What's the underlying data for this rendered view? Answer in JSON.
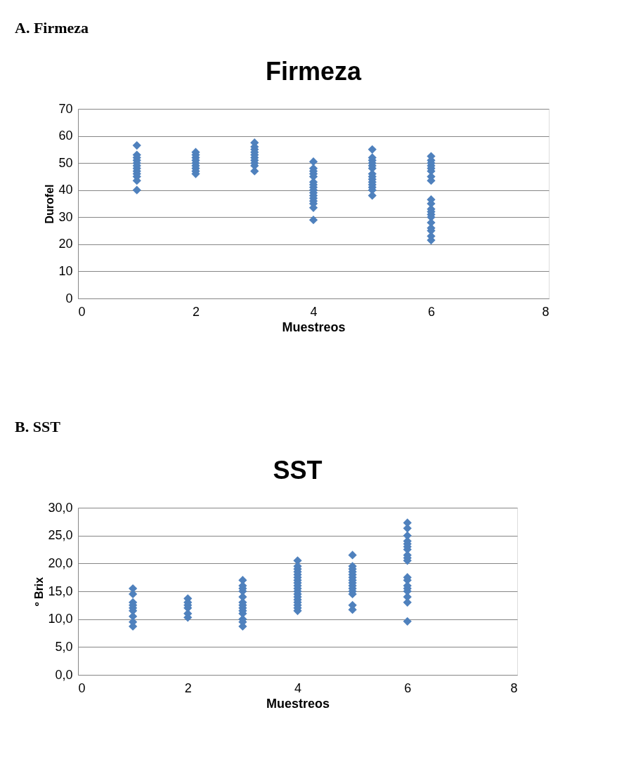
{
  "chart_data": [
    {
      "type": "scatter",
      "title": "Firmeza",
      "xlabel": "Muestreos",
      "ylabel": "Durofel",
      "annotations": [
        "A. Firmeza"
      ],
      "marker": "diamond",
      "grid": "y",
      "xlim": [
        0,
        8
      ],
      "xticks": [
        0,
        2,
        4,
        6,
        8
      ],
      "ylim": [
        0,
        70
      ],
      "yticks": [
        0,
        10,
        20,
        30,
        40,
        50,
        60,
        70
      ],
      "series": [
        {
          "color": "#4f81bd",
          "x": [
            1,
            1,
            1,
            1,
            1,
            1,
            1,
            1,
            1,
            1,
            1,
            1,
            2,
            2,
            2,
            2,
            2,
            2,
            2,
            2,
            2,
            3,
            3,
            3,
            3,
            3,
            3,
            3,
            3,
            3,
            3,
            4,
            4,
            4,
            4,
            4,
            4,
            4,
            4,
            4,
            4,
            4,
            4,
            4,
            4,
            4,
            4,
            5,
            5,
            5,
            5,
            5,
            5,
            5,
            5,
            5,
            5,
            5,
            5,
            5,
            5,
            6,
            6,
            6,
            6,
            6,
            6,
            6,
            6,
            6,
            6,
            6,
            6,
            6,
            6,
            6,
            6,
            6,
            6,
            6
          ],
          "values": [
            56.5,
            53,
            52,
            51,
            50,
            49,
            48,
            47,
            46,
            45,
            43.5,
            40,
            54,
            53,
            52,
            51,
            50,
            49,
            48,
            47,
            46,
            57.5,
            56,
            55,
            54,
            53,
            52,
            51,
            50,
            49,
            47,
            50.5,
            48,
            47,
            46,
            45,
            43,
            42,
            41,
            40,
            39,
            38,
            37,
            36,
            35,
            33.5,
            29,
            55,
            52,
            51,
            50,
            49,
            48,
            46,
            45,
            44,
            43,
            42,
            41,
            40,
            38,
            52.5,
            51,
            50,
            49,
            48,
            47,
            45,
            43.5,
            36.5,
            35,
            33,
            32,
            31,
            30,
            28,
            26,
            25,
            23,
            21.5
          ]
        }
      ]
    },
    {
      "type": "scatter",
      "title": "SST",
      "xlabel": "Muestreos",
      "ylabel": "º Brix",
      "annotations": [
        "B. SST"
      ],
      "marker": "diamond",
      "grid": "y",
      "xlim": [
        0,
        8
      ],
      "xticks": [
        0,
        2,
        4,
        6,
        8
      ],
      "ylim": [
        0,
        30
      ],
      "yticks": [
        {
          "value": 0,
          "label": "0,0"
        },
        {
          "value": 5,
          "label": "5,0"
        },
        {
          "value": 10,
          "label": "10,0"
        },
        {
          "value": 15,
          "label": "15,0"
        },
        {
          "value": 20,
          "label": "20,0"
        },
        {
          "value": 25,
          "label": "25,0"
        },
        {
          "value": 30,
          "label": "30,0"
        }
      ],
      "series": [
        {
          "color": "#4f81bd",
          "x": [
            1,
            1,
            1,
            1,
            1,
            1,
            1,
            1,
            1,
            2,
            2,
            2,
            2,
            2,
            2,
            3,
            3,
            3,
            3,
            3,
            3,
            3,
            3,
            3,
            3,
            3,
            3,
            3,
            4,
            4,
            4,
            4,
            4,
            4,
            4,
            4,
            4,
            4,
            4,
            4,
            4,
            4,
            4,
            4,
            4,
            4,
            5,
            5,
            5,
            5,
            5,
            5,
            5,
            5,
            5,
            5,
            5,
            5,
            5,
            5,
            6,
            6,
            6,
            6,
            6,
            6,
            6,
            6,
            6,
            6,
            6,
            6,
            6,
            6,
            6,
            6,
            6,
            6
          ],
          "values": [
            15.5,
            14.5,
            13,
            12.5,
            12,
            11.5,
            10.5,
            9.5,
            8.7,
            13.7,
            13,
            12.5,
            12,
            11,
            10.3,
            17,
            16,
            15.5,
            15,
            14,
            13,
            12.5,
            12,
            11.5,
            11,
            10,
            9.5,
            8.7,
            20.5,
            19.5,
            19,
            18.5,
            18,
            17.5,
            17,
            16.5,
            16,
            15.5,
            15,
            14.5,
            14,
            13.5,
            13,
            12.5,
            12,
            11.5,
            21.5,
            19.5,
            19,
            18.5,
            18,
            17.5,
            17,
            16.5,
            16,
            15.5,
            15,
            14.5,
            12.5,
            11.7,
            27.3,
            26.3,
            25,
            24,
            23.5,
            23,
            22.5,
            21.5,
            21,
            20.5,
            17.5,
            17,
            16,
            15.5,
            15,
            14,
            13,
            9.6
          ]
        }
      ]
    }
  ]
}
